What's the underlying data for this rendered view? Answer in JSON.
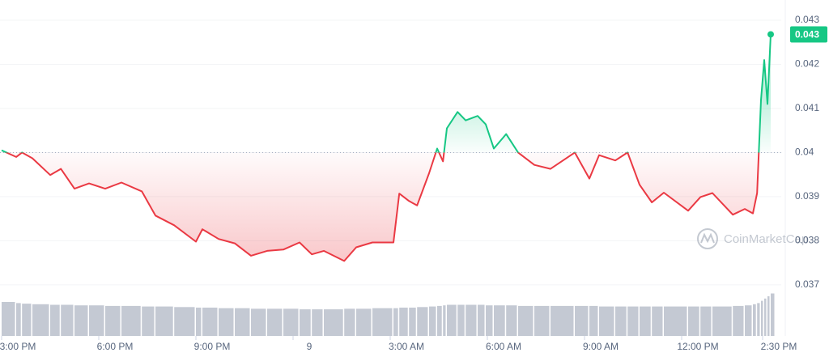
{
  "chart_data": {
    "type": "line",
    "x": [
      0,
      0.45,
      0.63,
      0.95,
      1.5,
      1.83,
      2.25,
      2.7,
      3.2,
      3.7,
      4.33,
      4.75,
      5.33,
      6,
      6.2,
      6.7,
      7.2,
      7.7,
      8.2,
      8.7,
      9.2,
      9.58,
      9.95,
      10.58,
      10.95,
      11.45,
      12.1,
      12.28,
      12.58,
      12.83,
      13.2,
      13.45,
      13.63,
      13.75,
      14.08,
      14.33,
      14.7,
      14.95,
      15.2,
      15.58,
      15.95,
      16.45,
      16.95,
      17.7,
      18.15,
      18.45,
      18.95,
      19.33,
      19.7,
      20.08,
      20.45,
      21.2,
      21.58,
      21.95,
      22.58,
      22.95,
      23.2,
      23.33,
      23.45,
      23.55,
      23.65,
      23.75
    ],
    "series": [
      {
        "values": [
          0.04005,
          0.0399,
          0.04,
          0.03987,
          0.03949,
          0.03963,
          0.03918,
          0.0393,
          0.03918,
          0.03932,
          0.03912,
          0.03857,
          0.03835,
          0.03798,
          0.03826,
          0.03804,
          0.03794,
          0.03766,
          0.03777,
          0.0378,
          0.03796,
          0.03769,
          0.03777,
          0.03754,
          0.03785,
          0.03796,
          0.03796,
          0.03907,
          0.0389,
          0.0388,
          0.03953,
          0.04009,
          0.0398,
          0.04055,
          0.04092,
          0.04073,
          0.04083,
          0.04064,
          0.04009,
          0.04042,
          0.04,
          0.03972,
          0.03963,
          0.04,
          0.03941,
          0.03994,
          0.03982,
          0.04,
          0.03927,
          0.03887,
          0.03909,
          0.03868,
          0.03899,
          0.03908,
          0.03859,
          0.03872,
          0.03862,
          0.03908,
          0.04119,
          0.0421,
          0.0411,
          0.04268
        ]
      }
    ],
    "volume": [
      60,
      58,
      57,
      56,
      55,
      55,
      54,
      54,
      53,
      53,
      52,
      52,
      51,
      50,
      50,
      49,
      49,
      48,
      48,
      48,
      47,
      47,
      47,
      48,
      48,
      49,
      49,
      50,
      50,
      51,
      52,
      53,
      54,
      55,
      55,
      55,
      55,
      54,
      54,
      54,
      53,
      53,
      53,
      53,
      53,
      52,
      52,
      52,
      52,
      52,
      52,
      52,
      52,
      52,
      53,
      54,
      56,
      58,
      62,
      66,
      70,
      75
    ],
    "up_color": "#16c784",
    "down_color": "#ea3943",
    "volume_color": "#c4c9d3",
    "baseline": 0.04,
    "xlim": [
      -0.05,
      24.075
    ],
    "xticks": [
      {
        "value": 0,
        "label": "3:00 PM"
      },
      {
        "value": 3,
        "label": "6:00 PM"
      },
      {
        "value": 6,
        "label": "9:00 PM"
      },
      {
        "value": 9,
        "label": "9"
      },
      {
        "value": 12,
        "label": "3:00 AM"
      },
      {
        "value": 15,
        "label": "6:00 AM"
      },
      {
        "value": 18,
        "label": "9:00 AM"
      },
      {
        "value": 21,
        "label": "12:00 PM"
      },
      {
        "value": 23.5,
        "label": "2:30 PM"
      }
    ],
    "ylim": [
      0.03584,
      0.04346
    ],
    "yticks": [
      0.037,
      0.038,
      0.039,
      0.04,
      0.041,
      0.042,
      0.043
    ],
    "grid": true,
    "last_price": {
      "value": 0.04268,
      "label": "0.043"
    },
    "watermark": "CoinMarketCap"
  }
}
